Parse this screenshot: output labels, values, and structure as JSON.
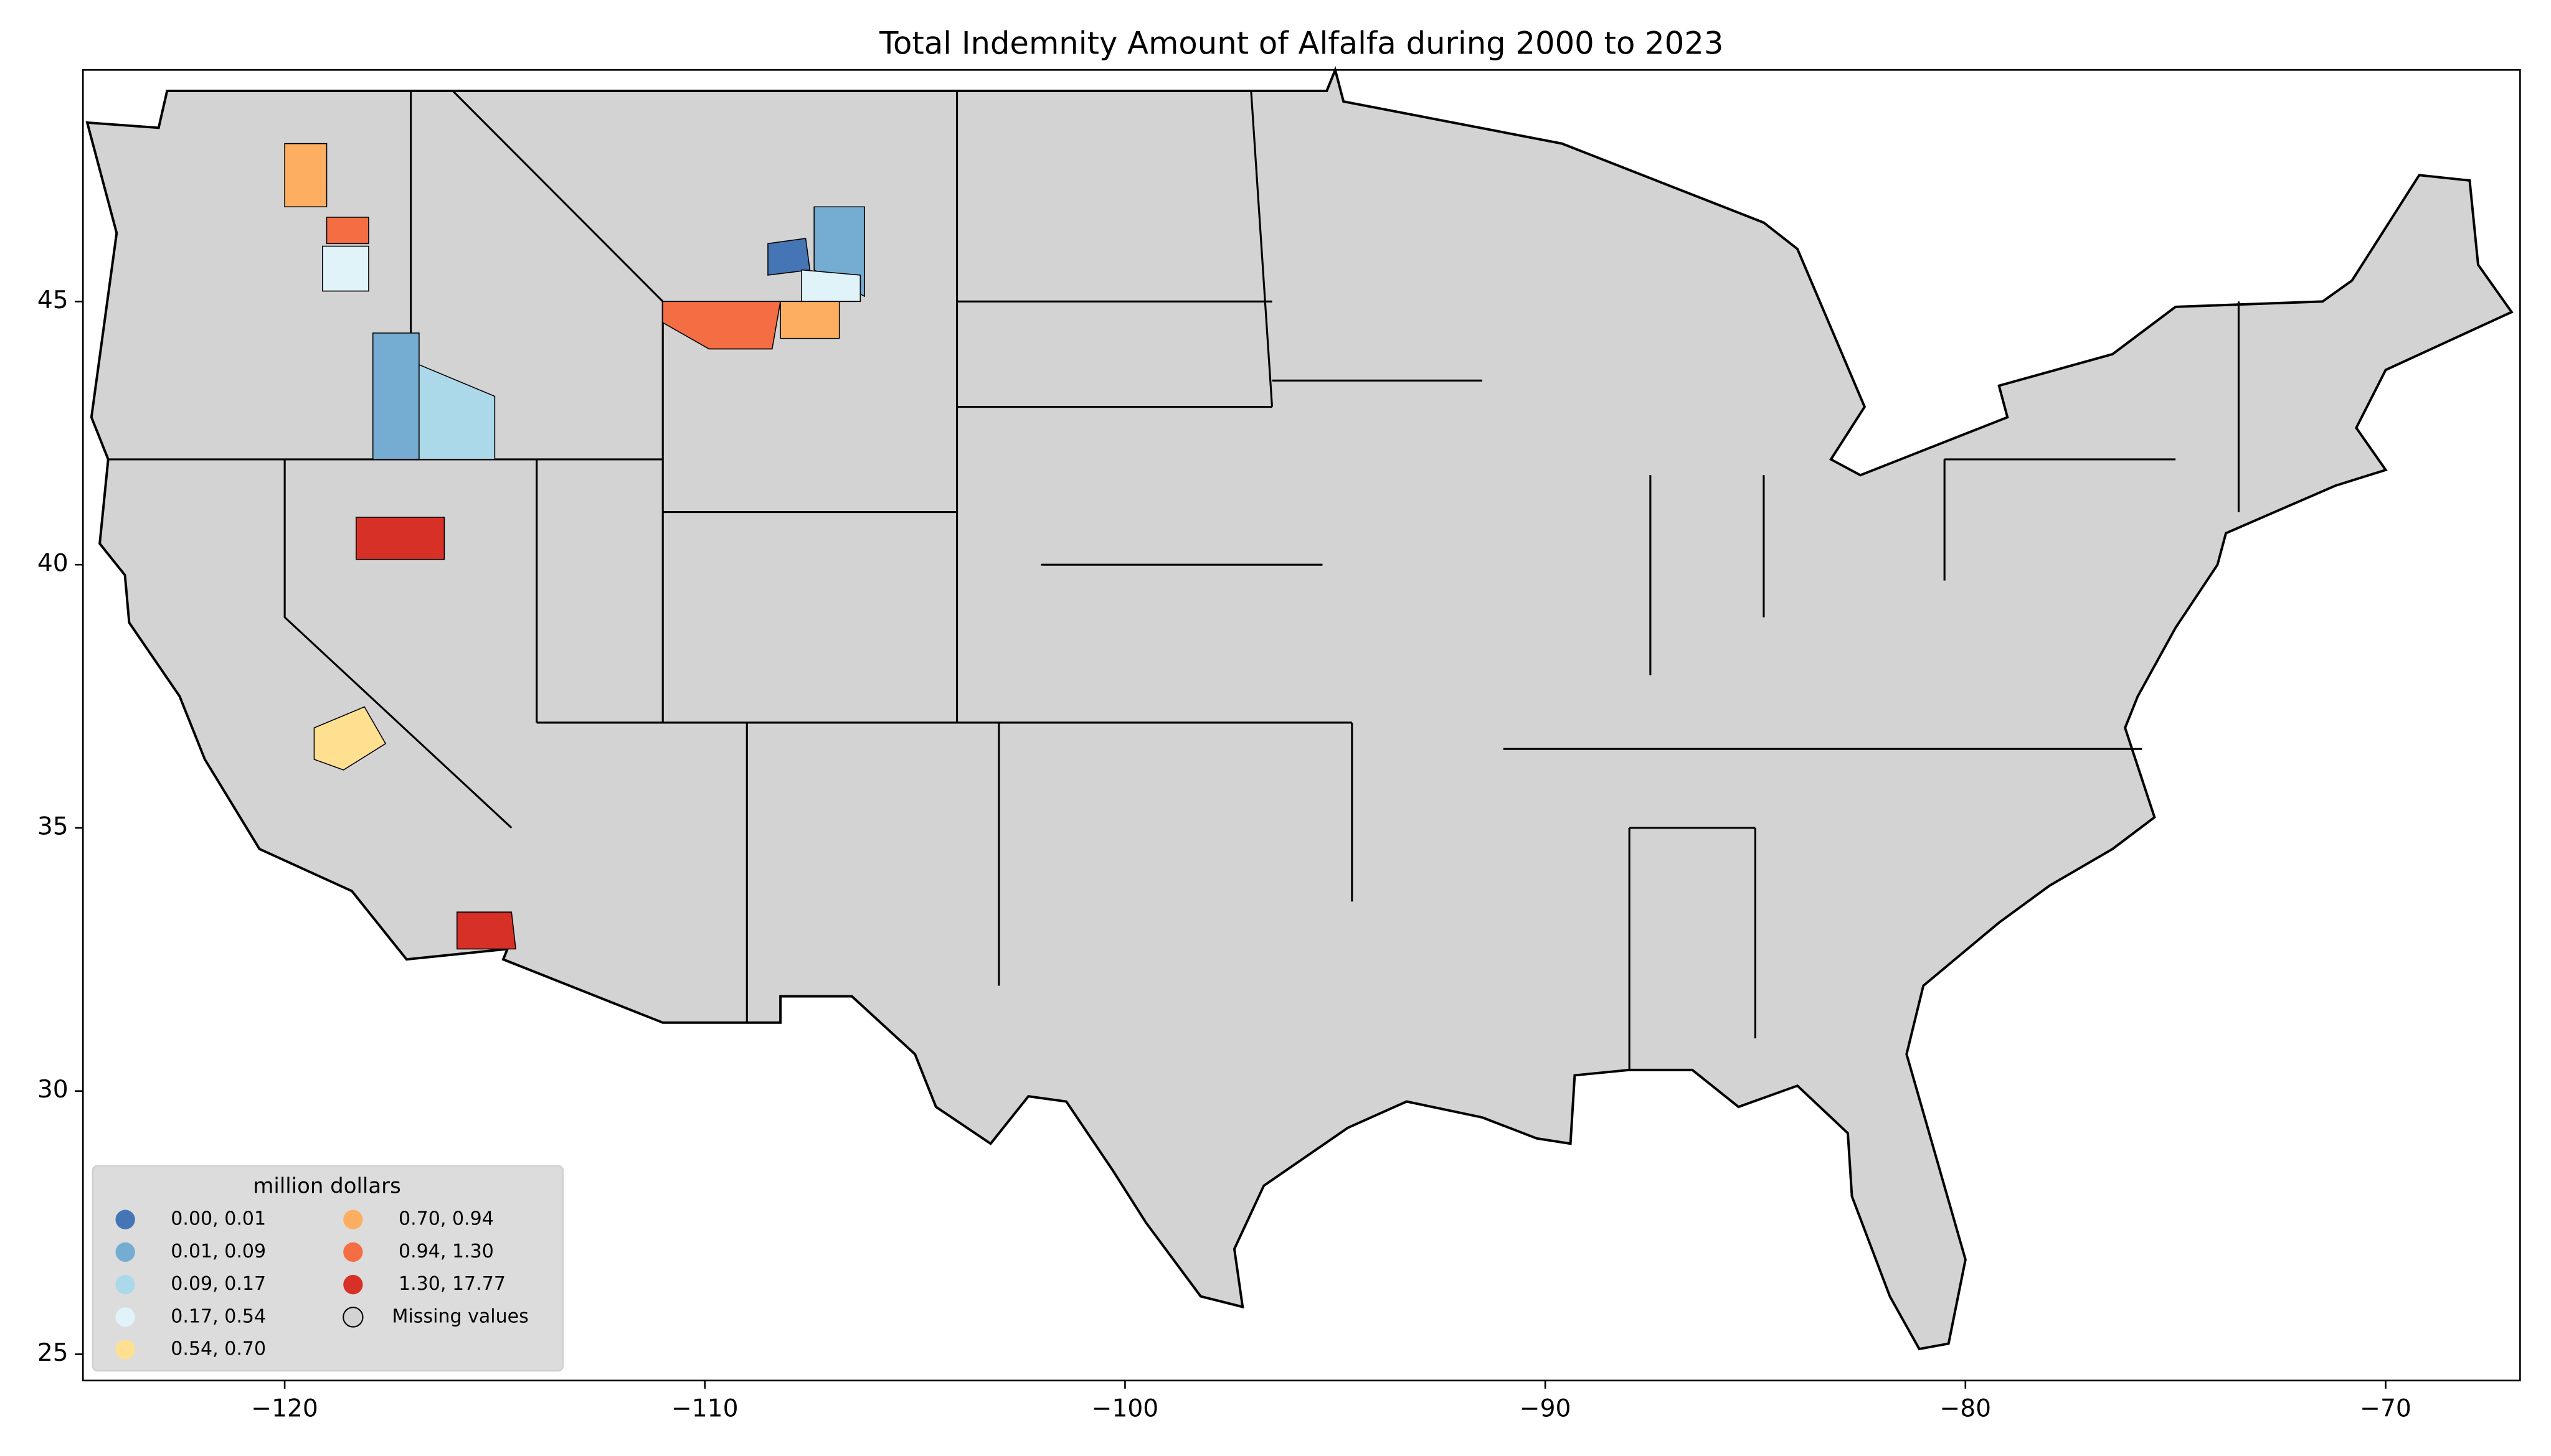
{
  "chart_data": {
    "type": "map",
    "title": "Total Indemnity Amount of Alfalfa during 2000 to 2023",
    "xlim": [
      -124.8,
      -66.8
    ],
    "ylim": [
      24.5,
      49.4
    ],
    "xticks": [
      {
        "value": -120,
        "label": "−120"
      },
      {
        "value": -110,
        "label": "−110"
      },
      {
        "value": -100,
        "label": "−100"
      },
      {
        "value": -90,
        "label": "−90"
      },
      {
        "value": -80,
        "label": "−80"
      },
      {
        "value": -70,
        "label": "−70"
      }
    ],
    "yticks": [
      25,
      30,
      35,
      40,
      45
    ],
    "missing_color": "#d3d3d3",
    "legend": {
      "title": "million dollars",
      "corner": "lower left",
      "entries": [
        {
          "label": "0.00,  0.01",
          "color": "#4575b4"
        },
        {
          "label": "0.01,  0.09",
          "color": "#74add1"
        },
        {
          "label": "0.09,  0.17",
          "color": "#abd9e9"
        },
        {
          "label": "0.17,  0.54",
          "color": "#e0f3f8"
        },
        {
          "label": "0.54,  0.70",
          "color": "#fee090"
        },
        {
          "label": "0.70,  0.94",
          "color": "#fdae61"
        },
        {
          "label": "0.94,  1.30",
          "color": "#f46d43"
        },
        {
          "label": "1.30, 17.77",
          "color": "#d73027"
        }
      ],
      "missing_label": "Missing values"
    }
  }
}
